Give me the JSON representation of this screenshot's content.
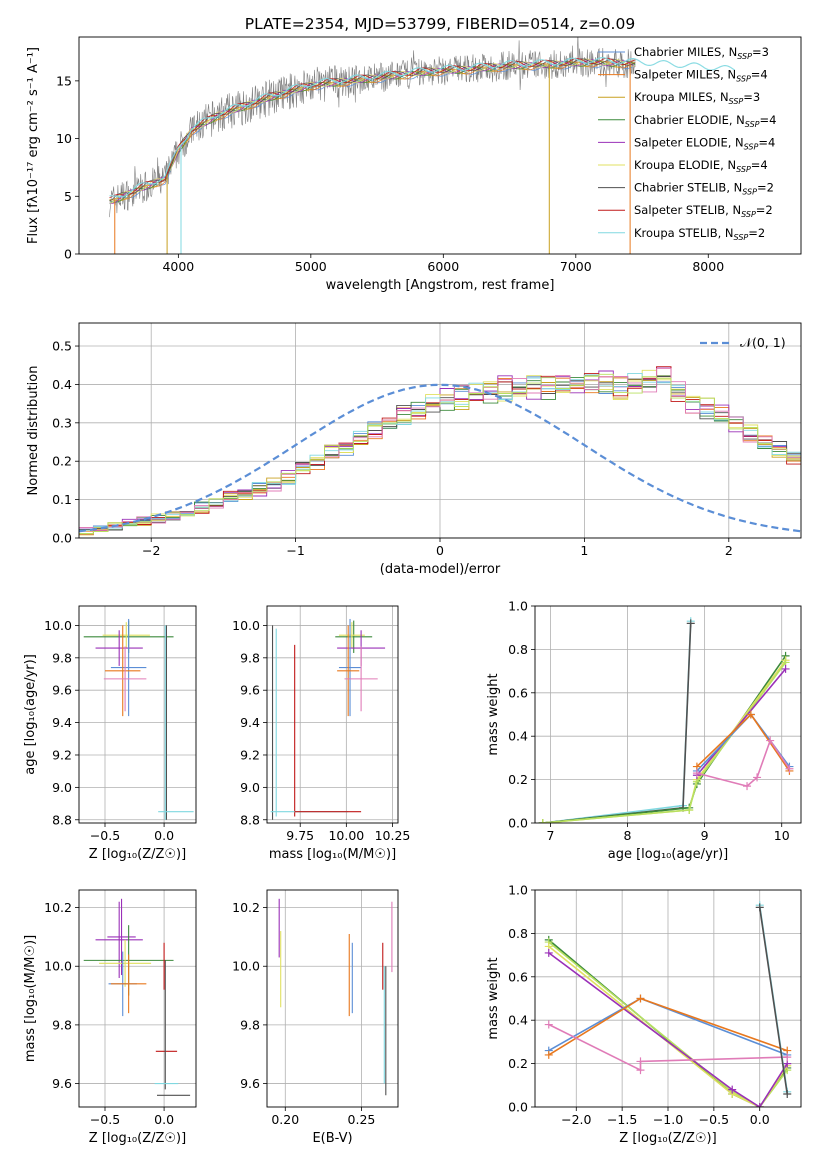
{
  "figure_title": "PLATE=2354, MJD=53799, FIBERID=0514, z=0.09",
  "colors": {
    "chabrier_miles": "#5b8ed6",
    "salpeter_miles": "#e8781e",
    "kroupa_miles": "#c8a020",
    "chabrier_elodie": "#3c8a3c",
    "salpeter_elodie": "#9a30b8",
    "kroupa_elodie": "#e0e060",
    "chabrier_stelib": "#505050",
    "salpeter_stelib": "#c01818",
    "kroupa_stelib": "#80d8e0",
    "pink": "#e07cb8",
    "lime": "#b8e060",
    "grid": "#b0b0b0",
    "obs": "#808080"
  },
  "chart_data": [
    {
      "type": "line",
      "id": "spectrum",
      "xlabel": "wavelength [Angstrom, rest frame]",
      "ylabel": "Flux [fλ10⁻¹⁷ erg cm⁻² s⁻¹ A⁻¹]",
      "xlim": [
        3250,
        8700
      ],
      "ylim": [
        0,
        18.8
      ],
      "xticks": [
        4000,
        5000,
        6000,
        7000,
        8000
      ],
      "yticks": [
        0,
        5,
        10,
        15
      ],
      "grid": false,
      "legend_position": "right",
      "legend": [
        {
          "label": "Chabrier MILES, N_SSP=3",
          "color_key": "chabrier_miles"
        },
        {
          "label": "Salpeter MILES, N_SSP=4",
          "color_key": "salpeter_miles"
        },
        {
          "label": "Kroupa MILES, N_SSP=3",
          "color_key": "kroupa_miles"
        },
        {
          "label": "Chabrier ELODIE, N_SSP=4",
          "color_key": "chabrier_elodie"
        },
        {
          "label": "Salpeter ELODIE, N_SSP=4",
          "color_key": "salpeter_elodie"
        },
        {
          "label": "Kroupa ELODIE, N_SSP=4",
          "color_key": "kroupa_elodie"
        },
        {
          "label": "Chabrier STELIB, N_SSP=2",
          "color_key": "chabrier_stelib"
        },
        {
          "label": "Salpeter STELIB, N_SSP=2",
          "color_key": "salpeter_stelib"
        },
        {
          "label": "Kroupa STELIB, N_SSP=2",
          "color_key": "kroupa_stelib"
        }
      ],
      "continuum": {
        "x": [
          3500,
          3700,
          3900,
          4000,
          4100,
          4300,
          4500,
          4700,
          5000,
          5300,
          5600,
          5900,
          6200,
          6500,
          6800,
          7100,
          7400,
          7800,
          8000,
          8200
        ],
        "y": [
          4.6,
          5.6,
          6.5,
          9.0,
          10.7,
          12.0,
          12.8,
          13.6,
          14.6,
          15.0,
          15.4,
          15.8,
          16.0,
          16.3,
          16.4,
          16.6,
          16.5,
          16.2,
          16.0,
          15.8
        ]
      },
      "drops": [
        {
          "x": 3520,
          "y": 0,
          "color_key": "salpeter_miles"
        },
        {
          "x": 3915,
          "y": 0,
          "color_key": "kroupa_miles"
        },
        {
          "x": 4020,
          "y": 0,
          "color_key": "kroupa_stelib"
        },
        {
          "x": 6800,
          "y": 0,
          "color_key": "kroupa_miles"
        },
        {
          "x": 7410,
          "y": 0,
          "color_key": "salpeter_miles"
        }
      ]
    },
    {
      "type": "bar",
      "id": "residual-histogram",
      "xlabel": "(data-model)/error",
      "ylabel": "Normed distribution",
      "xlim": [
        -2.5,
        2.5
      ],
      "ylim": [
        0,
        0.56
      ],
      "xticks": [
        -2,
        -1,
        0,
        1,
        2
      ],
      "yticks": [
        0.0,
        0.1,
        0.2,
        0.3,
        0.4,
        0.5
      ],
      "grid": true,
      "legend_position": "top-right",
      "legend": [
        {
          "label": "𝒩(0, 1)",
          "style": "dashed",
          "color_key": "chabrier_miles"
        }
      ],
      "bin_edges_start": -2.5,
      "bin_width": 0.1,
      "base_values": [
        0.017,
        0.022,
        0.03,
        0.038,
        0.045,
        0.05,
        0.057,
        0.066,
        0.078,
        0.092,
        0.105,
        0.115,
        0.128,
        0.14,
        0.16,
        0.185,
        0.2,
        0.222,
        0.237,
        0.26,
        0.285,
        0.302,
        0.318,
        0.33,
        0.345,
        0.357,
        0.367,
        0.377,
        0.384,
        0.389,
        0.391,
        0.393,
        0.395,
        0.395,
        0.402,
        0.41,
        0.4,
        0.39,
        0.395,
        0.41,
        0.42,
        0.38,
        0.355,
        0.34,
        0.32,
        0.3,
        0.27,
        0.25,
        0.23,
        0.21,
        0.18,
        0.16,
        0.14,
        0.12,
        0.1,
        0.085,
        0.08,
        0.09,
        0.075,
        0.06,
        0.055,
        0.05,
        0.045,
        0.04,
        0.035,
        0.03,
        0.025,
        0.022,
        0.02,
        0.018
      ],
      "gaussian": {
        "mean": 0,
        "sigma": 1
      }
    },
    {
      "type": "scatter",
      "id": "age-vs-metallicity",
      "xlabel": "Z [log₁₀(Z/Z☉)]",
      "ylabel": "age  [log₁₀(age/yr)]",
      "xlim": [
        -0.72,
        0.27
      ],
      "ylim": [
        8.78,
        10.12
      ],
      "xticks": [
        -0.5,
        0.0
      ],
      "yticks": [
        8.8,
        9.0,
        9.2,
        9.4,
        9.6,
        9.8,
        10.0
      ],
      "grid": true,
      "errorbars": [
        {
          "x": -0.3,
          "y": 9.93,
          "xerr": 0.38,
          "yerr": 0.1,
          "color_key": "chabrier_elodie"
        },
        {
          "x": -0.32,
          "y": 9.94,
          "xerr": 0.2,
          "yerr": 0.08,
          "color_key": "kroupa_elodie"
        },
        {
          "x": -0.38,
          "y": 9.86,
          "xerr": 0.2,
          "yerr": 0.11,
          "color_key": "salpeter_elodie"
        },
        {
          "x": -0.3,
          "y": 9.74,
          "xerr": 0.15,
          "yerr": 0.3,
          "color_key": "chabrier_miles"
        },
        {
          "x": -0.35,
          "y": 9.72,
          "xerr": 0.15,
          "yerr": 0.28,
          "color_key": "salpeter_miles"
        },
        {
          "x": -0.33,
          "y": 9.67,
          "xerr": 0.18,
          "yerr": 0.2,
          "color_key": "pink"
        },
        {
          "x": 0.02,
          "y": 9.4,
          "xerr": 0.0,
          "yerr": 0.6,
          "color_key": "chabrier_stelib"
        },
        {
          "x": 0.01,
          "y": 9.4,
          "xerr": 0.0,
          "yerr": 0.6,
          "color_key": "kroupa_stelib"
        },
        {
          "x": 0.1,
          "y": 8.85,
          "xerr": 0.15,
          "yerr": 0.0,
          "color_key": "kroupa_stelib"
        }
      ]
    },
    {
      "type": "scatter",
      "id": "age-vs-mass",
      "xlabel": "mass [log₁₀(M/M☉)]",
      "ylabel": "",
      "xlim": [
        9.57,
        10.28
      ],
      "ylim": [
        8.78,
        10.12
      ],
      "xticks": [
        9.75,
        10.0,
        10.25
      ],
      "yticks": [
        8.8,
        9.0,
        9.2,
        9.4,
        9.6,
        9.8,
        10.0
      ],
      "grid": true,
      "errorbars": [
        {
          "x": 10.04,
          "y": 9.93,
          "xerr": 0.1,
          "yerr": 0.1,
          "color_key": "chabrier_elodie"
        },
        {
          "x": 10.03,
          "y": 9.94,
          "xerr": 0.07,
          "yerr": 0.08,
          "color_key": "kroupa_elodie"
        },
        {
          "x": 10.08,
          "y": 9.86,
          "xerr": 0.13,
          "yerr": 0.11,
          "color_key": "salpeter_elodie"
        },
        {
          "x": 10.02,
          "y": 9.74,
          "xerr": 0.06,
          "yerr": 0.3,
          "color_key": "chabrier_miles"
        },
        {
          "x": 10.01,
          "y": 9.72,
          "xerr": 0.06,
          "yerr": 0.28,
          "color_key": "salpeter_miles"
        },
        {
          "x": 10.08,
          "y": 9.67,
          "xerr": 0.09,
          "yerr": 0.2,
          "color_key": "pink"
        },
        {
          "x": 9.6,
          "y": 9.4,
          "xerr": 0.0,
          "yerr": 0.6,
          "color_key": "chabrier_stelib"
        },
        {
          "x": 9.62,
          "y": 9.4,
          "xerr": 0.0,
          "yerr": 0.58,
          "color_key": "kroupa_stelib"
        },
        {
          "x": 9.72,
          "y": 9.35,
          "xerr": 0.0,
          "yerr": 0.53,
          "color_key": "salpeter_stelib"
        },
        {
          "x": 9.8,
          "y": 8.85,
          "xerr": 0.21,
          "yerr": 0.0,
          "color_key": "kroupa_stelib"
        },
        {
          "x": 9.9,
          "y": 8.85,
          "xerr": 0.18,
          "yerr": 0.0,
          "color_key": "salpeter_stelib"
        }
      ]
    },
    {
      "type": "line",
      "id": "mass-weight-vs-age",
      "xlabel": "age  [log₁₀(age/yr)]",
      "ylabel": "mass weight",
      "xlim": [
        6.8,
        10.25
      ],
      "ylim": [
        0,
        1.0
      ],
      "xticks": [
        7,
        8,
        9,
        10
      ],
      "yticks": [
        0.0,
        0.2,
        0.4,
        0.6,
        0.8,
        1.0
      ],
      "grid": true,
      "series": [
        {
          "color_key": "kroupa_stelib",
          "x": [
            6.9,
            8.72,
            8.82
          ],
          "y": [
            0.0,
            0.08,
            0.93
          ]
        },
        {
          "color_key": "chabrier_stelib",
          "x": [
            6.9,
            8.72,
            8.82
          ],
          "y": [
            0.0,
            0.07,
            0.92
          ]
        },
        {
          "color_key": "chabrier_elodie",
          "x": [
            6.9,
            8.8,
            8.9,
            10.05
          ],
          "y": [
            0.0,
            0.07,
            0.18,
            0.77
          ]
        },
        {
          "color_key": "kroupa_elodie",
          "x": [
            6.9,
            8.8,
            8.9,
            10.05
          ],
          "y": [
            0.0,
            0.06,
            0.2,
            0.75
          ]
        },
        {
          "color_key": "lime",
          "x": [
            6.9,
            8.8,
            8.9,
            10.05
          ],
          "y": [
            0.0,
            0.06,
            0.19,
            0.74
          ]
        },
        {
          "color_key": "salpeter_elodie",
          "x": [
            8.9,
            10.05
          ],
          "y": [
            0.22,
            0.71
          ]
        },
        {
          "color_key": "chabrier_miles",
          "x": [
            8.9,
            9.6,
            10.1
          ],
          "y": [
            0.24,
            0.5,
            0.26
          ]
        },
        {
          "color_key": "salpeter_miles",
          "x": [
            8.9,
            9.6,
            10.1
          ],
          "y": [
            0.26,
            0.5,
            0.24
          ]
        },
        {
          "color_key": "pink",
          "x": [
            8.9,
            9.55,
            9.68,
            9.85,
            10.1
          ],
          "y": [
            0.23,
            0.17,
            0.21,
            0.38,
            0.25
          ]
        }
      ]
    },
    {
      "type": "scatter",
      "id": "mass-vs-metallicity",
      "xlabel": "Z [log₁₀(Z/Z☉)]",
      "ylabel": "mass [log₁₀(M/M☉)]",
      "xlim": [
        -0.72,
        0.27
      ],
      "ylim": [
        9.52,
        10.26
      ],
      "xticks": [
        -0.5,
        0.0
      ],
      "yticks": [
        9.6,
        9.8,
        10.0,
        10.2
      ],
      "grid": true,
      "errorbars": [
        {
          "x": -0.38,
          "y": 10.09,
          "xerr": 0.2,
          "yerr": 0.13,
          "color_key": "salpeter_elodie"
        },
        {
          "x": -0.36,
          "y": 10.1,
          "xerr": 0.12,
          "yerr": 0.13,
          "color_key": "salpeter_elodie"
        },
        {
          "x": -0.3,
          "y": 10.02,
          "xerr": 0.38,
          "yerr": 0.12,
          "color_key": "chabrier_elodie"
        },
        {
          "x": -0.33,
          "y": 10.01,
          "xerr": 0.22,
          "yerr": 0.08,
          "color_key": "kroupa_elodie"
        },
        {
          "x": -0.35,
          "y": 9.94,
          "xerr": 0.12,
          "yerr": 0.11,
          "color_key": "chabrier_miles"
        },
        {
          "x": -0.3,
          "y": 9.94,
          "xerr": 0.15,
          "yerr": 0.1,
          "color_key": "salpeter_miles"
        },
        {
          "x": 0.02,
          "y": 9.71,
          "xerr": 0.09,
          "yerr": 0.0,
          "color_key": "salpeter_stelib"
        },
        {
          "x": 0.01,
          "y": 9.8,
          "xerr": 0.0,
          "yerr": 0.22,
          "color_key": "chabrier_stelib"
        },
        {
          "x": 0.02,
          "y": 9.6,
          "xerr": 0.1,
          "yerr": 0.0,
          "color_key": "kroupa_stelib"
        },
        {
          "x": 0.08,
          "y": 9.56,
          "xerr": 0.14,
          "yerr": 0.0,
          "color_key": "chabrier_stelib"
        },
        {
          "x": 0.0,
          "y": 10.0,
          "xerr": 0.0,
          "yerr": 0.08,
          "color_key": "salpeter_stelib"
        }
      ]
    },
    {
      "type": "scatter",
      "id": "mass-vs-ebv",
      "xlabel": "E(B-V)",
      "ylabel": "",
      "xlim": [
        0.188,
        0.274
      ],
      "ylim": [
        9.52,
        10.26
      ],
      "xticks": [
        0.2,
        0.25
      ],
      "yticks": [
        9.6,
        9.8,
        10.0,
        10.2
      ],
      "grid": true,
      "errorbars": [
        {
          "x": 0.196,
          "y": 10.13,
          "xerr": 0,
          "yerr": 0.1,
          "color_key": "salpeter_elodie"
        },
        {
          "x": 0.197,
          "y": 9.99,
          "xerr": 0,
          "yerr": 0.13,
          "color_key": "kroupa_elodie"
        },
        {
          "x": 0.242,
          "y": 9.97,
          "xerr": 0,
          "yerr": 0.14,
          "color_key": "salpeter_miles"
        },
        {
          "x": 0.244,
          "y": 9.96,
          "xerr": 0,
          "yerr": 0.12,
          "color_key": "chabrier_miles"
        },
        {
          "x": 0.264,
          "y": 10.0,
          "xerr": 0,
          "yerr": 0.08,
          "color_key": "salpeter_stelib"
        },
        {
          "x": 0.265,
          "y": 9.8,
          "xerr": 0,
          "yerr": 0.2,
          "color_key": "kroupa_stelib"
        },
        {
          "x": 0.266,
          "y": 9.78,
          "xerr": 0,
          "yerr": 0.22,
          "color_key": "chabrier_stelib"
        },
        {
          "x": 0.27,
          "y": 10.1,
          "xerr": 0,
          "yerr": 0.12,
          "color_key": "pink"
        }
      ]
    },
    {
      "type": "line",
      "id": "mass-weight-vs-metallicity",
      "xlabel": "Z [log₁₀(Z/Z☉)]",
      "ylabel": "mass weight",
      "xlim": [
        -2.45,
        0.45
      ],
      "ylim": [
        0,
        1.0
      ],
      "xticks": [
        -2.0,
        -1.5,
        -1.0,
        -0.5,
        0.0
      ],
      "yticks": [
        0.0,
        0.2,
        0.4,
        0.6,
        0.8,
        1.0
      ],
      "grid": true,
      "series": [
        {
          "color_key": "chabrier_elodie",
          "x": [
            -2.3,
            -0.3,
            0.0,
            0.3
          ],
          "y": [
            0.77,
            0.06,
            0.0,
            0.18
          ]
        },
        {
          "color_key": "lime",
          "x": [
            -2.3,
            -0.3,
            0.0,
            0.3
          ],
          "y": [
            0.76,
            0.07,
            0.0,
            0.17
          ]
        },
        {
          "color_key": "kroupa_elodie",
          "x": [
            -2.3,
            -0.3,
            0.0,
            0.3
          ],
          "y": [
            0.74,
            0.06,
            0.0,
            0.19
          ]
        },
        {
          "color_key": "salpeter_elodie",
          "x": [
            -2.3,
            -0.3,
            0.0,
            0.3
          ],
          "y": [
            0.71,
            0.08,
            0.0,
            0.2
          ]
        },
        {
          "color_key": "chabrier_miles",
          "x": [
            -2.3,
            -1.3,
            0.3
          ],
          "y": [
            0.26,
            0.5,
            0.24
          ]
        },
        {
          "color_key": "salpeter_miles",
          "x": [
            -2.3,
            -1.3,
            0.3
          ],
          "y": [
            0.24,
            0.5,
            0.26
          ]
        },
        {
          "color_key": "pink",
          "x": [
            -2.3,
            -1.3,
            -1.3,
            0.3
          ],
          "y": [
            0.38,
            0.17,
            0.21,
            0.23
          ]
        },
        {
          "color_key": "kroupa_stelib",
          "x": [
            0.0,
            0.3
          ],
          "y": [
            0.93,
            0.07
          ]
        },
        {
          "color_key": "chabrier_stelib",
          "x": [
            0.0,
            0.3
          ],
          "y": [
            0.92,
            0.06
          ]
        }
      ]
    }
  ]
}
